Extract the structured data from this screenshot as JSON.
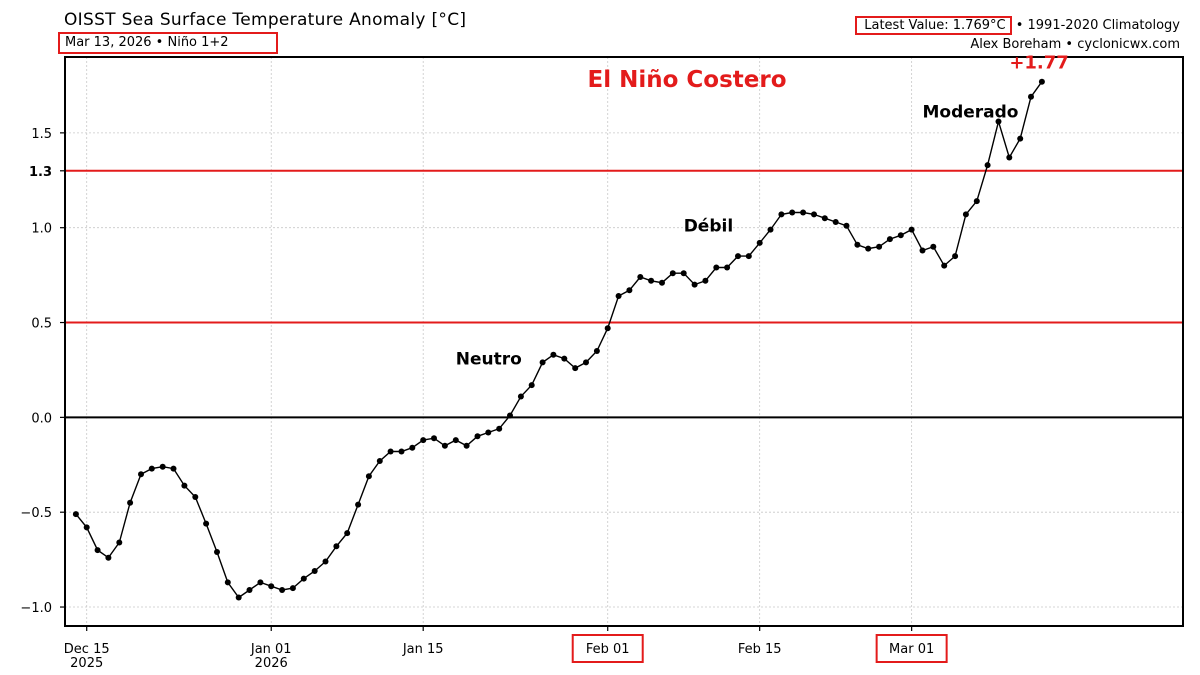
{
  "header": {
    "title": "OISST Sea Surface Temperature Anomaly [°C]",
    "subtitle": "Mar 13, 2026 • Niño 1+2",
    "latest_value": "Latest Value: 1.769°C",
    "climatology": "• 1991-2020 Climatology",
    "credit": "Alex Boreham • cyclonicwx.com"
  },
  "colors": {
    "threshold_line": "#e31b1b",
    "annotation_red": "#e31b1b",
    "series": "#000000",
    "grid": "#c8c8c8",
    "zero_line": "#000000"
  },
  "chart_data": {
    "type": "line",
    "title": "El Niño Costero",
    "xlabel": "",
    "ylabel": "",
    "ylim": [
      -1.1,
      1.9
    ],
    "xlim": [
      "2025-12-13",
      "2026-03-26"
    ],
    "grid": true,
    "yticks": [
      {
        "value": -1.0,
        "label": "−1.0"
      },
      {
        "value": -0.5,
        "label": "−0.5"
      },
      {
        "value": 0.0,
        "label": "0.0"
      },
      {
        "value": 0.5,
        "label": "0.5"
      },
      {
        "value": 1.0,
        "label": "1.0"
      },
      {
        "value": 1.3,
        "label": "1.3",
        "bold": true
      },
      {
        "value": 1.5,
        "label": "1.5"
      }
    ],
    "xticks": [
      {
        "date": "2025-12-15",
        "label": "Dec 15",
        "label2": "2025"
      },
      {
        "date": "2026-01-01",
        "label": "Jan 01",
        "label2": "2026"
      },
      {
        "date": "2026-01-15",
        "label": "Jan 15",
        "label2": ""
      },
      {
        "date": "2026-02-01",
        "label": "Feb 01",
        "label2": "",
        "boxed": true
      },
      {
        "date": "2026-02-15",
        "label": "Feb 15",
        "label2": ""
      },
      {
        "date": "2026-03-01",
        "label": "Mar 01",
        "label2": "",
        "boxed": true
      }
    ],
    "thresholds": [
      0.5,
      1.3
    ],
    "annotations": [
      {
        "text": "Neutro",
        "date": "2026-01-18",
        "y": 0.28
      },
      {
        "text": "Débil",
        "date": "2026-02-08",
        "y": 0.98
      },
      {
        "text": "Moderado",
        "date": "2026-03-02",
        "y": 1.58
      },
      {
        "text": "+1.77",
        "date": "2026-03-10",
        "y": 1.84,
        "red": true
      }
    ],
    "series": [
      {
        "start_date": "2025-12-14",
        "values": [
          -0.51,
          -0.58,
          -0.7,
          -0.74,
          -0.66,
          -0.45,
          -0.3,
          -0.27,
          -0.26,
          -0.27,
          -0.36,
          -0.42,
          -0.56,
          -0.71,
          -0.87,
          -0.95,
          -0.91,
          -0.87,
          -0.89,
          -0.91,
          -0.9,
          -0.85,
          -0.81,
          -0.76,
          -0.68,
          -0.61,
          -0.46,
          -0.31,
          -0.23,
          -0.18,
          -0.18,
          -0.16,
          -0.12,
          -0.11,
          -0.15,
          -0.12,
          -0.15,
          -0.1,
          -0.08,
          -0.06,
          0.01,
          0.11,
          0.17,
          0.29,
          0.33,
          0.31,
          0.26,
          0.29,
          0.35,
          0.47,
          0.64,
          0.67,
          0.74,
          0.72,
          0.71,
          0.76,
          0.76,
          0.7,
          0.72,
          0.79,
          0.79,
          0.85,
          0.85,
          0.92,
          0.99,
          1.07,
          1.08,
          1.08,
          1.07,
          1.05,
          1.03,
          1.01,
          0.91,
          0.89,
          0.9,
          0.94,
          0.96,
          0.99,
          0.88,
          0.9,
          0.8,
          0.85,
          1.07,
          1.14,
          1.33,
          1.56,
          1.37,
          1.47,
          1.69,
          1.77
        ]
      }
    ]
  }
}
